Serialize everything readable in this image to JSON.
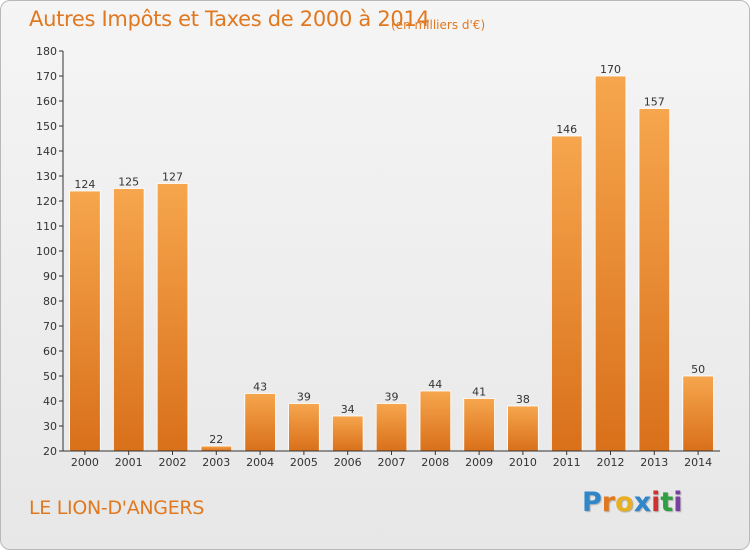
{
  "header": {
    "title": "Autres Impôts et Taxes de 2000 à 2014",
    "unit": "(en milliers d'€)"
  },
  "footer": {
    "commune": "LE LION-D'ANGERS",
    "logo_letters": [
      "P",
      "r",
      "o",
      "x",
      "i",
      "t",
      "i"
    ],
    "logo_colors": [
      "#2f86c8",
      "#e07820",
      "#e8b020",
      "#2f86c8",
      "#d03030",
      "#2fa040",
      "#7a3fa0"
    ]
  },
  "colors": {
    "bar_light": "#f6a64e",
    "bar_dark": "#d9701a",
    "accent": "#e07820",
    "axis": "#333333",
    "grid": "#d5d5d5"
  },
  "chart_data": {
    "type": "bar",
    "title": "Autres Impôts et Taxes de 2000 à 2014",
    "xlabel": "",
    "ylabel": "",
    "categories": [
      "2000",
      "2001",
      "2002",
      "2003",
      "2004",
      "2005",
      "2006",
      "2007",
      "2008",
      "2009",
      "2010",
      "2011",
      "2012",
      "2013",
      "2014"
    ],
    "values": [
      124,
      125,
      127,
      22,
      43,
      39,
      34,
      39,
      44,
      41,
      38,
      146,
      170,
      157,
      50
    ],
    "ylim": [
      20,
      180
    ],
    "ytick_step": 10,
    "grid": false,
    "legend": "none"
  }
}
